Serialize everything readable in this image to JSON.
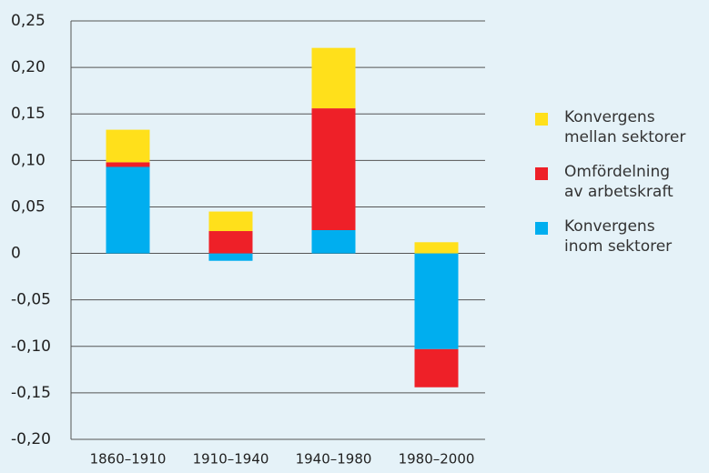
{
  "chart_data": {
    "type": "stacked_bar",
    "categories": [
      "1860–1910",
      "1910–1940",
      "1940–1980",
      "1980–2000"
    ],
    "series": [
      {
        "name": "Konvergens\ninom sektorer",
        "color": "#00aeef",
        "values": [
          0.093,
          -0.008,
          0.025,
          -0.103
        ]
      },
      {
        "name": "Omfördelning\nav arbetskraft",
        "color": "#ee2028",
        "values": [
          0.005,
          0.024,
          0.131,
          -0.041
        ]
      },
      {
        "name": "Konvergens\nmellan sektorer",
        "color": "#ffe01b",
        "values": [
          0.035,
          0.021,
          0.065,
          0.012
        ]
      }
    ],
    "ylim": [
      -0.2,
      0.25
    ],
    "yticks": [
      {
        "value": -0.2,
        "label": "-0,20"
      },
      {
        "value": -0.15,
        "label": "-0,15"
      },
      {
        "value": -0.1,
        "label": "-0,10"
      },
      {
        "value": -0.05,
        "label": "-0,05"
      },
      0,
      {
        "value": 0.05,
        "label": "0,05"
      },
      {
        "value": 0.1,
        "label": "0,10"
      },
      {
        "value": 0.15,
        "label": "0,15"
      },
      {
        "value": 0.2,
        "label": "0,20"
      },
      {
        "value": 0.25,
        "label": "0,25"
      }
    ],
    "grid": true,
    "legend": "right"
  }
}
